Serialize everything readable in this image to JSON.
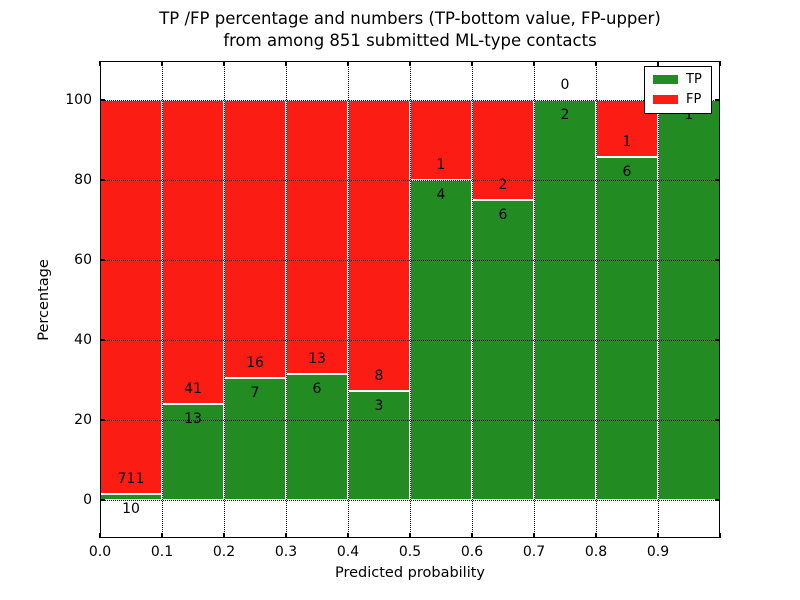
{
  "chart_data": {
    "type": "bar",
    "stacked": true,
    "normalized": "percent",
    "title_line1": "TP /FP percentage and numbers (TP-bottom value, FP-upper)",
    "title_line2": "from among 851 submitted ML-type contacts",
    "total_contacts": 851,
    "xlabel": "Predicted probability",
    "ylabel": "Percentage",
    "categories": [
      "0.0",
      "0.1",
      "0.2",
      "0.3",
      "0.4",
      "0.5",
      "0.6",
      "0.7",
      "0.8",
      "0.9"
    ],
    "bin_width": 0.1,
    "series": [
      {
        "name": "TP",
        "color": "#228b22",
        "values": [
          10,
          13,
          7,
          6,
          3,
          4,
          6,
          2,
          6,
          1
        ]
      },
      {
        "name": "FP",
        "color": "#fb1d14",
        "values": [
          711,
          41,
          16,
          13,
          8,
          1,
          2,
          0,
          1,
          0
        ]
      }
    ],
    "yticks": [
      0,
      20,
      40,
      60,
      80,
      100
    ],
    "ylim": [
      -10,
      110
    ],
    "xlim": [
      0.0,
      1.0
    ],
    "grid": true,
    "grid_style": "dotted",
    "bar_edge_color": "#ffffff",
    "legend": {
      "position": "upper right",
      "entries": [
        "TP",
        "FP"
      ]
    }
  }
}
